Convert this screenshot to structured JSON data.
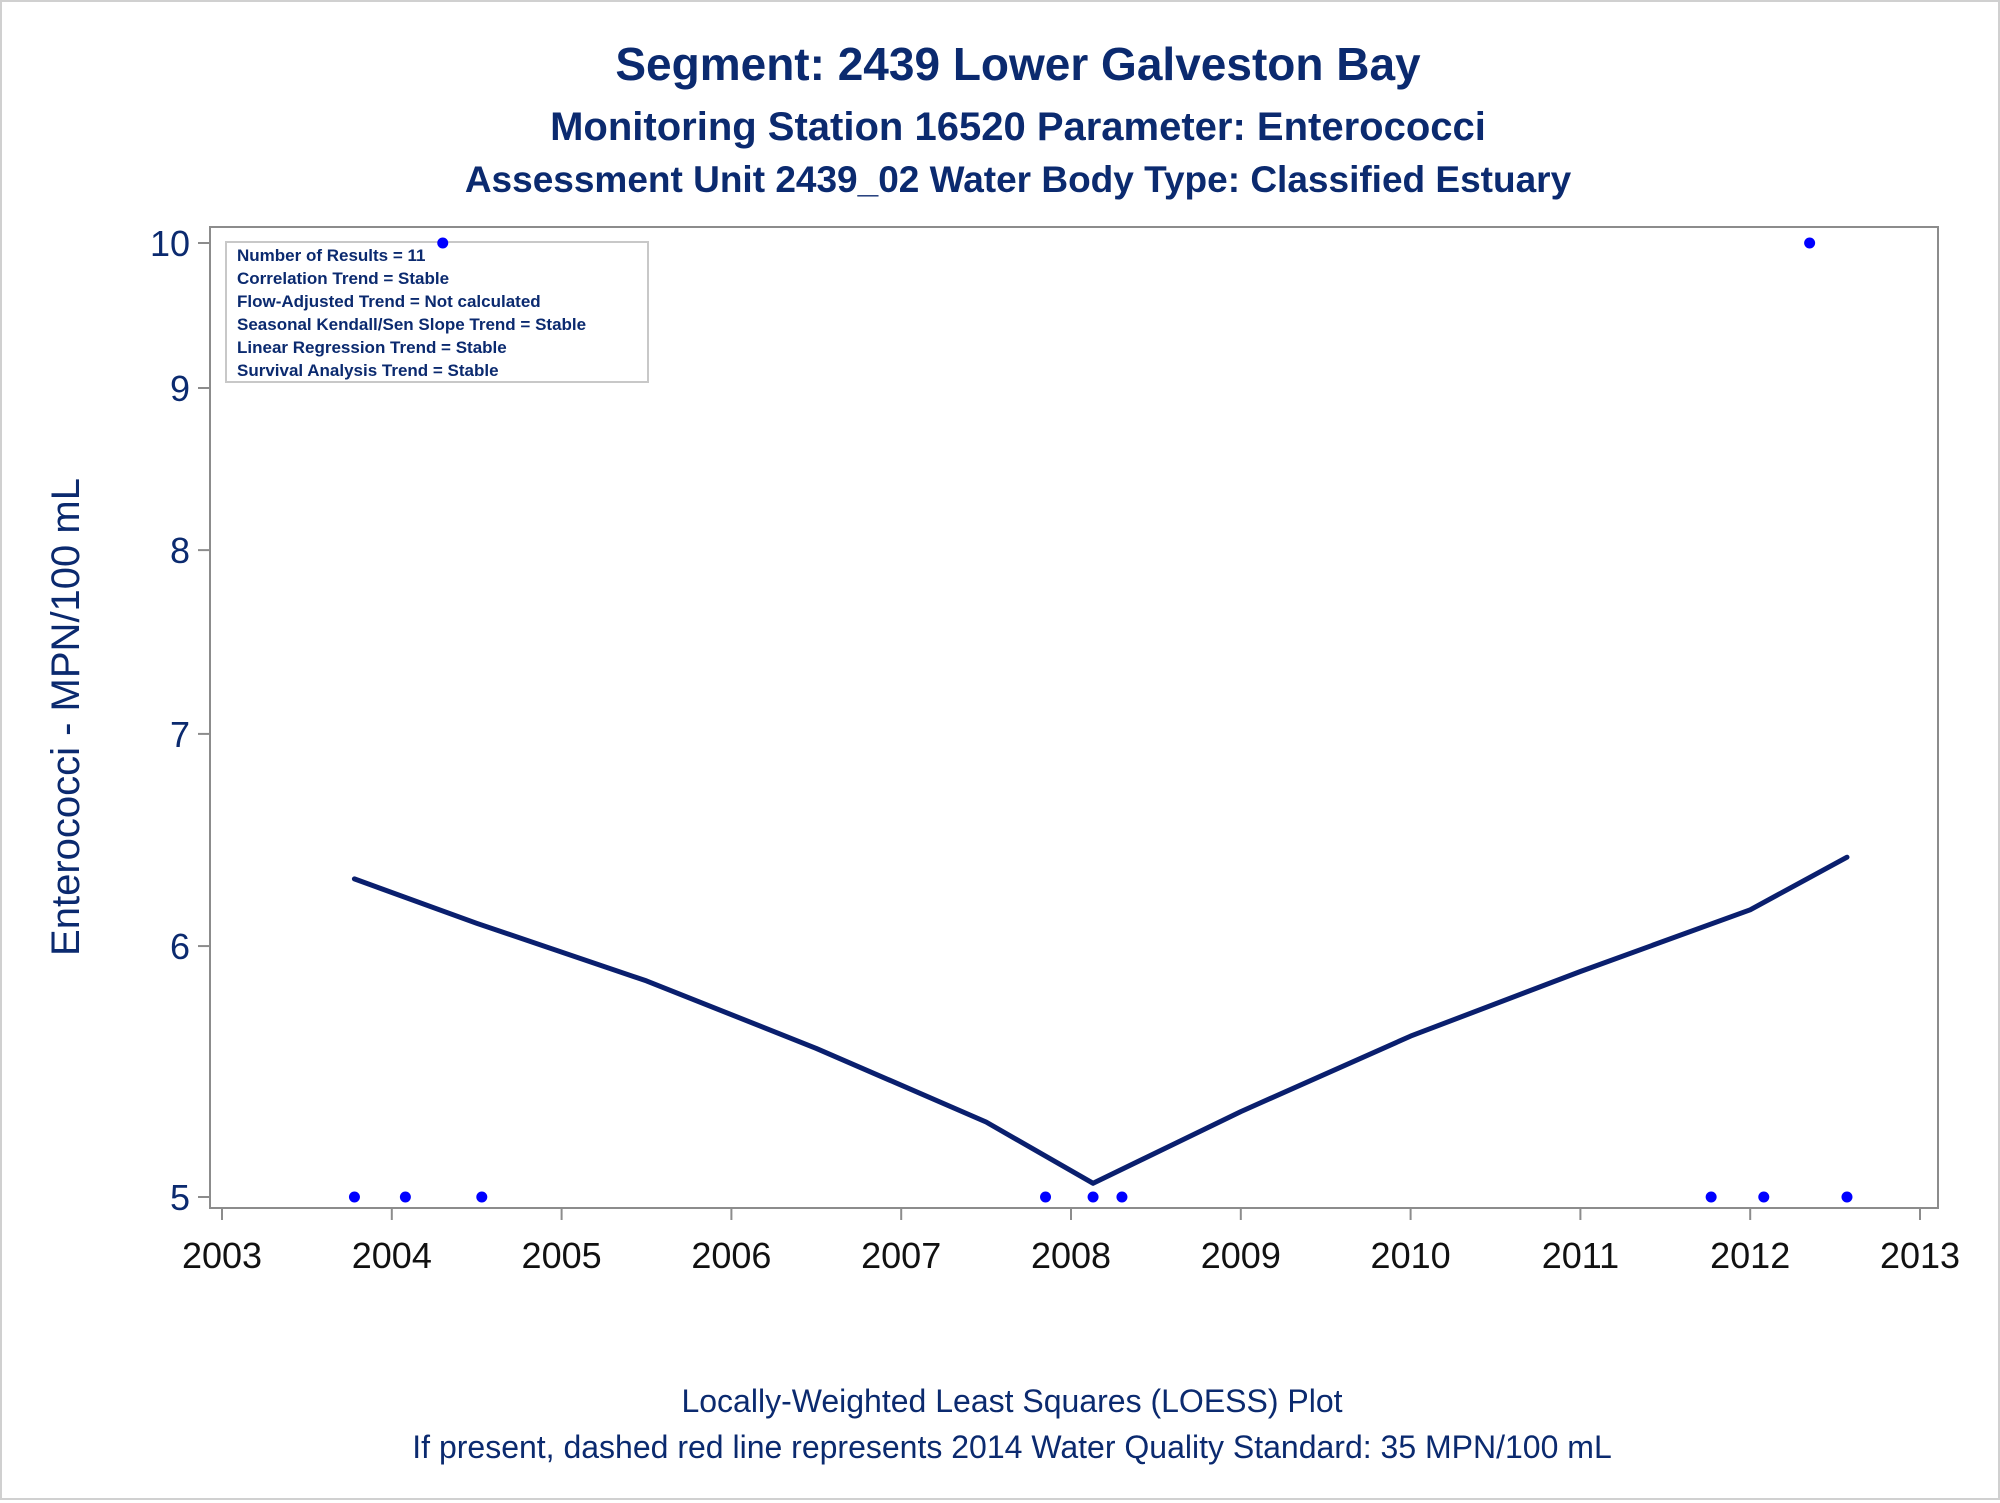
{
  "chart_data": {
    "type": "scatter",
    "title": "Segment: 2439  Lower Galveston Bay",
    "subtitle": "Monitoring Station 16520 Parameter: Enterococci",
    "subtitle2": "Assessment Unit 2439_02   Water Body Type: Classified Estuary",
    "xlabel": "",
    "ylabel": "Enterococci - MPN/100 mL",
    "footnote": "Locally-Weighted Least Squares (LOESS) Plot",
    "footnote2": "If present, dashed red line represents 2014 Water Quality Standard: 35 MPN/100 mL",
    "xlim": [
      2003,
      2013
    ],
    "ylim": [
      5,
      10
    ],
    "yscale": "log",
    "x_ticks": [
      "2003",
      "2004",
      "2005",
      "2006",
      "2007",
      "2008",
      "2009",
      "2010",
      "2011",
      "2012",
      "2013"
    ],
    "y_ticks": [
      "5",
      "6",
      "7",
      "8",
      "9",
      "10"
    ],
    "legend_placement": "top-left",
    "stats_box": [
      "Number of Results = 11",
      "Correlation Trend = Stable",
      "Flow-Adjusted Trend = Not calculated",
      "Seasonal Kendall/Sen Slope Trend = Stable",
      "Linear Regression Trend = Stable",
      "Survival Analysis Trend = Stable"
    ],
    "points": [
      {
        "x": 2003.78,
        "y": 5
      },
      {
        "x": 2004.08,
        "y": 5
      },
      {
        "x": 2004.3,
        "y": 10
      },
      {
        "x": 2004.53,
        "y": 5
      },
      {
        "x": 2007.85,
        "y": 5
      },
      {
        "x": 2008.13,
        "y": 5
      },
      {
        "x": 2008.3,
        "y": 5
      },
      {
        "x": 2011.77,
        "y": 5
      },
      {
        "x": 2012.08,
        "y": 5
      },
      {
        "x": 2012.35,
        "y": 10
      },
      {
        "x": 2012.57,
        "y": 5
      }
    ],
    "loess": [
      {
        "x": 2003.78,
        "y": 6.3
      },
      {
        "x": 2004.5,
        "y": 6.1
      },
      {
        "x": 2005.5,
        "y": 5.85
      },
      {
        "x": 2006.5,
        "y": 5.57
      },
      {
        "x": 2007.5,
        "y": 5.28
      },
      {
        "x": 2008.13,
        "y": 5.05
      },
      {
        "x": 2009.0,
        "y": 5.32
      },
      {
        "x": 2010.0,
        "y": 5.62
      },
      {
        "x": 2011.0,
        "y": 5.89
      },
      {
        "x": 2012.0,
        "y": 6.16
      },
      {
        "x": 2012.57,
        "y": 6.4
      }
    ],
    "colors": {
      "text": "#0b2a6f",
      "loess": "#0a1f6e",
      "points": "#0000ff",
      "axis": "#8c8c8c"
    }
  }
}
